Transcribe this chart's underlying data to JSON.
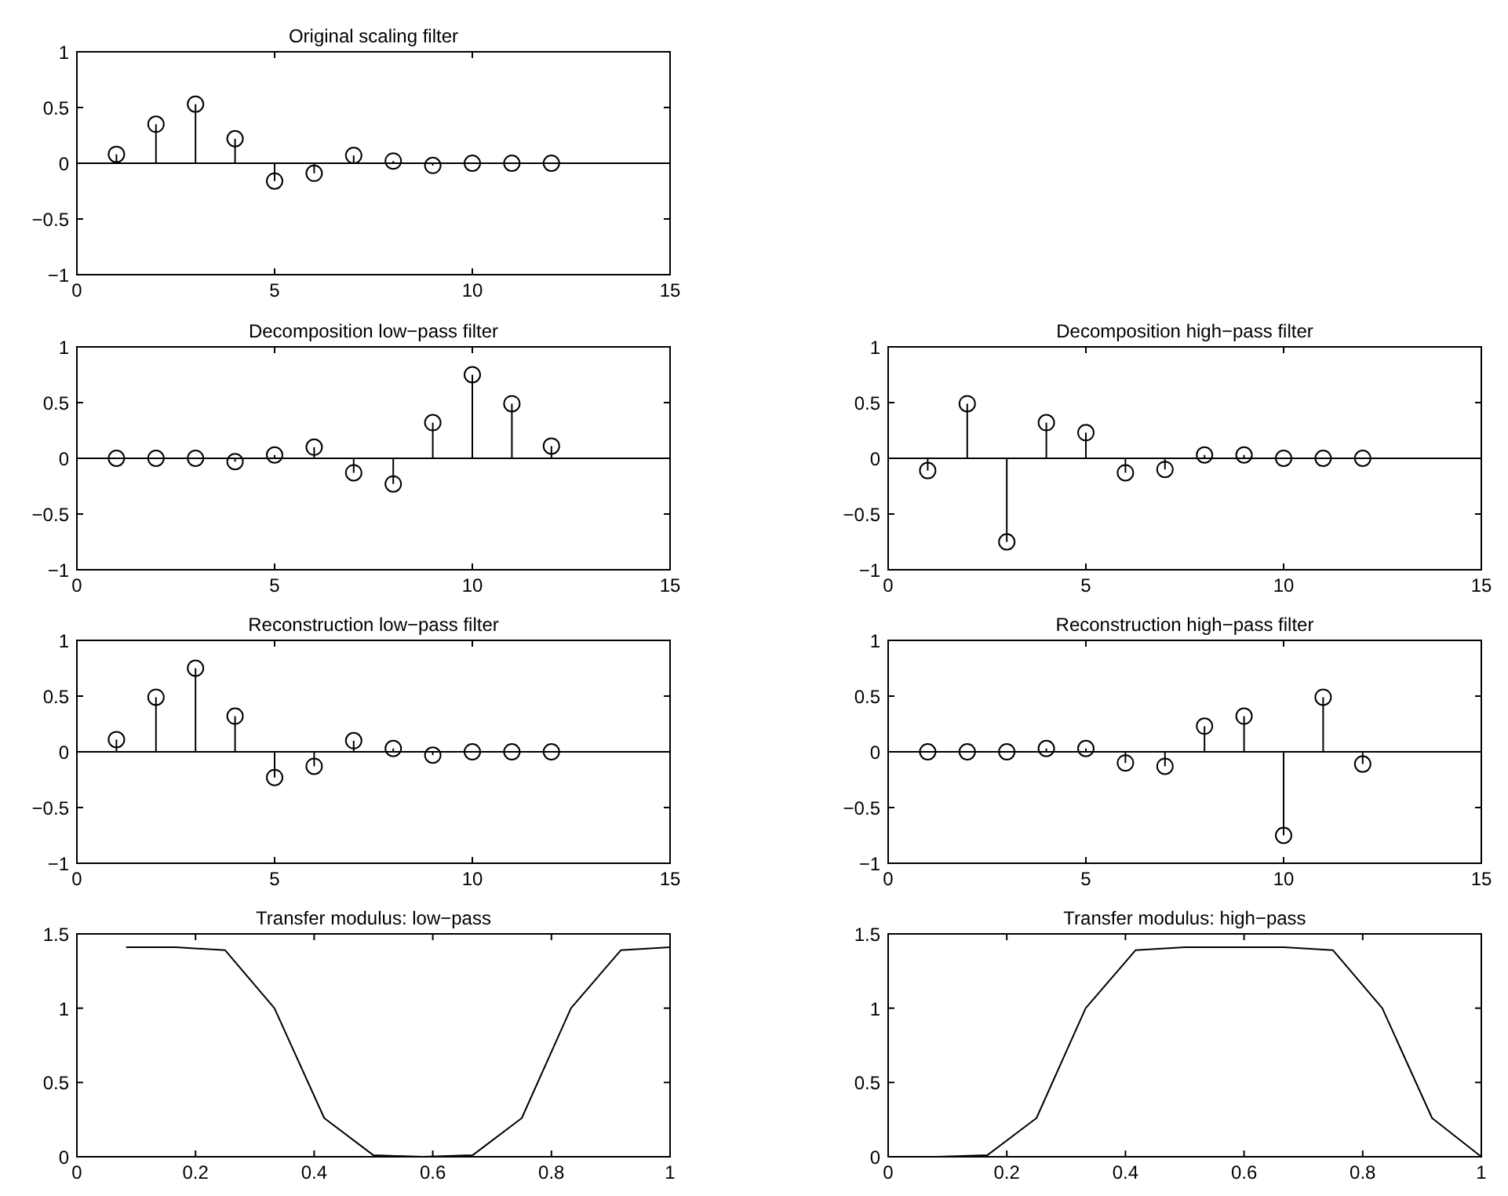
{
  "chart_data": [
    {
      "type": "lollipop",
      "title": "Original scaling filter",
      "x": [
        1,
        2,
        3,
        4,
        5,
        6,
        7,
        8,
        9,
        10,
        11,
        12
      ],
      "values": [
        0.08,
        0.35,
        0.53,
        0.22,
        -0.16,
        -0.09,
        0.07,
        0.02,
        -0.02,
        0.0,
        0.0,
        0.0
      ],
      "color": "#000000",
      "marker": "circle",
      "xlim": [
        0,
        15
      ],
      "ylim": [
        -1,
        1
      ],
      "xticks": [
        0,
        5,
        10,
        15
      ],
      "yticks": [
        -1,
        -0.5,
        0,
        0.5,
        1
      ]
    },
    {
      "type": "lollipop",
      "title": "Decomposition low−pass filter",
      "x": [
        1,
        2,
        3,
        4,
        5,
        6,
        7,
        8,
        9,
        10,
        11,
        12
      ],
      "values": [
        0.0,
        0.0,
        0.0,
        -0.03,
        0.03,
        0.1,
        -0.13,
        -0.23,
        0.32,
        0.75,
        0.49,
        0.11
      ],
      "color": "#000000",
      "marker": "circle",
      "xlim": [
        0,
        15
      ],
      "ylim": [
        -1,
        1
      ],
      "xticks": [
        0,
        5,
        10,
        15
      ],
      "yticks": [
        -1,
        -0.5,
        0,
        0.5,
        1
      ]
    },
    {
      "type": "lollipop",
      "title": "Decomposition high−pass filter",
      "x": [
        1,
        2,
        3,
        4,
        5,
        6,
        7,
        8,
        9,
        10,
        11,
        12
      ],
      "values": [
        -0.11,
        0.49,
        -0.75,
        0.32,
        0.23,
        -0.13,
        -0.1,
        0.03,
        0.03,
        0.0,
        0.0,
        0.0
      ],
      "color": "#000000",
      "marker": "circle",
      "xlim": [
        0,
        15
      ],
      "ylim": [
        -1,
        1
      ],
      "xticks": [
        0,
        5,
        10,
        15
      ],
      "yticks": [
        -1,
        -0.5,
        0,
        0.5,
        1
      ]
    },
    {
      "type": "lollipop",
      "title": "Reconstruction low−pass filter",
      "x": [
        1,
        2,
        3,
        4,
        5,
        6,
        7,
        8,
        9,
        10,
        11,
        12
      ],
      "values": [
        0.11,
        0.49,
        0.75,
        0.32,
        -0.23,
        -0.13,
        0.1,
        0.03,
        -0.03,
        0.0,
        0.0,
        0.0
      ],
      "color": "#000000",
      "marker": "circle",
      "xlim": [
        0,
        15
      ],
      "ylim": [
        -1,
        1
      ],
      "xticks": [
        0,
        5,
        10,
        15
      ],
      "yticks": [
        -1,
        -0.5,
        0,
        0.5,
        1
      ]
    },
    {
      "type": "lollipop",
      "title": "Reconstruction high−pass filter",
      "x": [
        1,
        2,
        3,
        4,
        5,
        6,
        7,
        8,
        9,
        10,
        11,
        12
      ],
      "values": [
        0.0,
        0.0,
        0.0,
        0.03,
        0.03,
        -0.1,
        -0.13,
        0.23,
        0.32,
        -0.75,
        0.49,
        -0.11
      ],
      "color": "#000000",
      "marker": "circle",
      "xlim": [
        0,
        15
      ],
      "ylim": [
        -1,
        1
      ],
      "xticks": [
        0,
        5,
        10,
        15
      ],
      "yticks": [
        -1,
        -0.5,
        0,
        0.5,
        1
      ]
    },
    {
      "type": "line",
      "title": "Transfer modulus: low−pass",
      "x": [
        0.083,
        0.167,
        0.25,
        0.333,
        0.417,
        0.5,
        0.583,
        0.667,
        0.75,
        0.833,
        0.917,
        1.0
      ],
      "values": [
        1.41,
        1.41,
        1.39,
        1.0,
        0.26,
        0.01,
        0.0,
        0.01,
        0.26,
        1.0,
        1.39,
        1.41
      ],
      "color": "#000000",
      "marker": "none",
      "xlim": [
        0,
        1
      ],
      "ylim": [
        0,
        1.5
      ],
      "xticks": [
        0,
        0.2,
        0.4,
        0.6,
        0.8,
        1
      ],
      "yticks": [
        0,
        0.5,
        1,
        1.5
      ]
    },
    {
      "type": "line",
      "title": "Transfer modulus: high−pass",
      "x": [
        0,
        0.083,
        0.167,
        0.25,
        0.333,
        0.417,
        0.5,
        0.583,
        0.667,
        0.75,
        0.833,
        0.917,
        1.0
      ],
      "values": [
        0.0,
        0.0,
        0.01,
        0.26,
        1.0,
        1.39,
        1.41,
        1.41,
        1.41,
        1.39,
        1.0,
        0.26,
        0.0
      ],
      "color": "#000000",
      "marker": "none",
      "xlim": [
        0,
        1
      ],
      "ylim": [
        0,
        1.5
      ],
      "xticks": [
        0,
        0.2,
        0.4,
        0.6,
        0.8,
        1
      ],
      "yticks": [
        0,
        0.5,
        1,
        1.5
      ]
    }
  ]
}
